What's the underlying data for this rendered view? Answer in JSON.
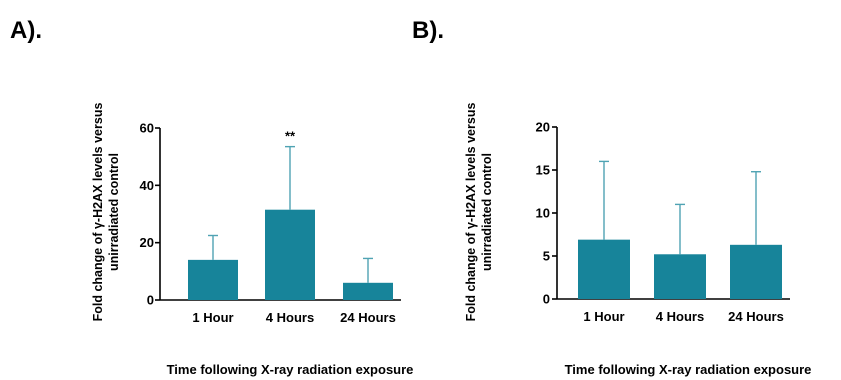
{
  "chart_data": [
    {
      "type": "bar",
      "panel_label": "A).",
      "categories": [
        "1 Hour",
        "4 Hours",
        "24 Hours"
      ],
      "values": [
        14,
        31.5,
        6
      ],
      "error_upper": [
        22.5,
        53.5,
        14.5
      ],
      "annotations": [
        "",
        "**",
        ""
      ],
      "ylim": [
        0,
        60
      ],
      "yticks": [
        "0",
        "20",
        "40",
        "60"
      ],
      "ylabel_lines": [
        "Fold change of γ-H2AX levels versus",
        "unirradiated control"
      ],
      "xlabel": "Time following X-ray radiation exposure",
      "bar_color": "#17849A",
      "error_color": "#4FA3B3"
    },
    {
      "type": "bar",
      "panel_label": "B).",
      "categories": [
        "1 Hour",
        "4 Hours",
        "24 Hours"
      ],
      "values": [
        6.9,
        5.2,
        6.3
      ],
      "error_upper": [
        16,
        11,
        14.8
      ],
      "annotations": [
        "",
        "",
        ""
      ],
      "ylim": [
        0,
        20
      ],
      "yticks": [
        "0",
        "5",
        "10",
        "15",
        "20"
      ],
      "ylabel_lines": [
        "Fold change of γ-H2AX levels versus",
        "unirradiated control"
      ],
      "xlabel": "Time following X-ray radiation exposure",
      "bar_color": "#17849A",
      "error_color": "#4FA3B3"
    }
  ]
}
